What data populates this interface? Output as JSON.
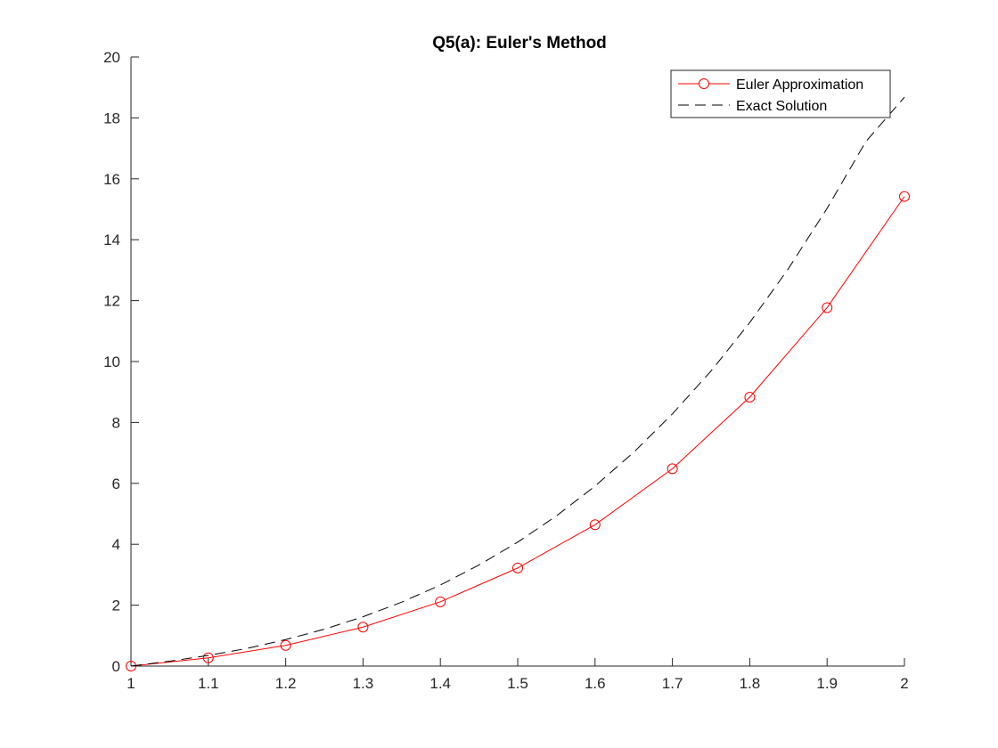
{
  "chart_data": {
    "type": "line",
    "title": "Q5(a): Euler's Method",
    "xlabel": "",
    "ylabel": "",
    "xlim": [
      1,
      2
    ],
    "ylim": [
      0,
      20
    ],
    "xticks": [
      "1",
      "1.1",
      "1.2",
      "1.3",
      "1.4",
      "1.5",
      "1.6",
      "1.7",
      "1.8",
      "1.9",
      "2"
    ],
    "yticks": [
      "0",
      "2",
      "4",
      "6",
      "8",
      "10",
      "12",
      "14",
      "16",
      "18",
      "20"
    ],
    "grid": false,
    "legend_position": "top-right",
    "series": [
      {
        "name": "Euler Approximation",
        "color": "#ff0000",
        "line_style": "solid",
        "marker": "circle",
        "x": [
          1.0,
          1.1,
          1.2,
          1.3,
          1.4,
          1.5,
          1.6,
          1.7,
          1.8,
          1.9,
          2.0
        ],
        "y": [
          0.0,
          0.27,
          0.68,
          1.28,
          2.11,
          3.22,
          4.64,
          6.48,
          8.83,
          11.77,
          15.42
        ]
      },
      {
        "name": "Exact Solution",
        "color": "#000000",
        "line_style": "dashed",
        "marker": "none",
        "x": [
          1.0,
          1.05,
          1.1,
          1.15,
          1.2,
          1.25,
          1.3,
          1.35,
          1.4,
          1.45,
          1.5,
          1.55,
          1.6,
          1.65,
          1.7,
          1.75,
          1.8,
          1.85,
          1.9,
          1.95,
          2.0
        ],
        "y": [
          0.0,
          0.16,
          0.35,
          0.58,
          0.87,
          1.21,
          1.62,
          2.1,
          2.66,
          3.32,
          4.07,
          4.93,
          5.91,
          7.02,
          8.28,
          9.69,
          11.28,
          13.05,
          15.03,
          17.22,
          18.68
        ]
      }
    ]
  }
}
